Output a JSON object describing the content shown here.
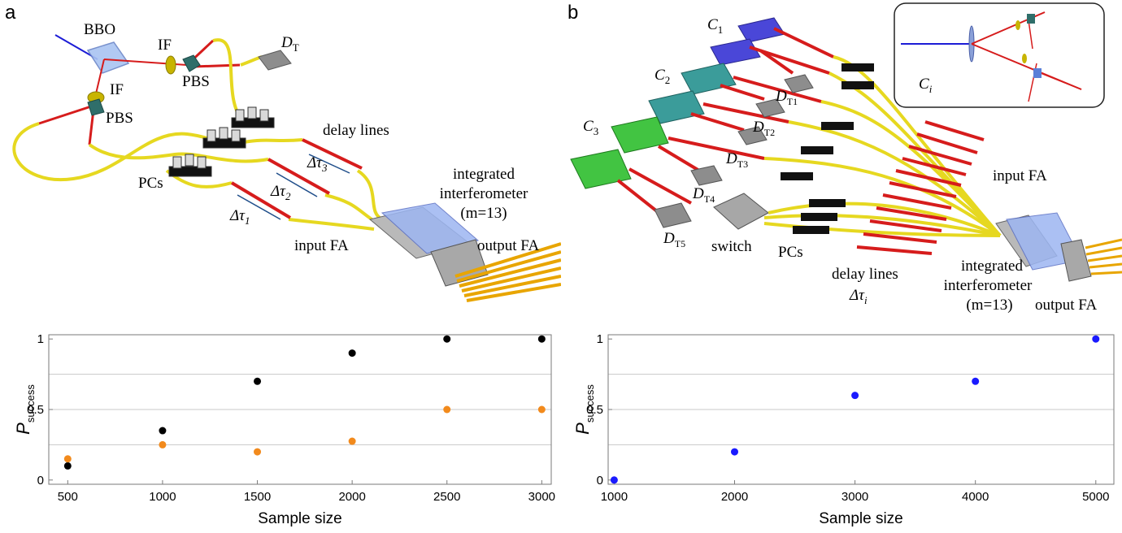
{
  "panels": {
    "a": {
      "letter": "a",
      "labels": {
        "bbo": "BBO",
        "if_top": "IF",
        "pbs_top": "PBS",
        "if_left": "IF",
        "pbs_left": "PBS",
        "dt_main": "D",
        "dt_sub": "T",
        "delay_lines": "delay lines",
        "pcs": "PCs",
        "integrated": "integrated",
        "interferometer": "interferometer",
        "m_eq": "(m=13)",
        "input_fa": "input FA",
        "output_fa": "output FA",
        "tau1": "Δτ",
        "tau1_sub": "1",
        "tau2": "Δτ",
        "tau2_sub": "2",
        "tau3": "Δτ",
        "tau3_sub": "3"
      }
    },
    "b": {
      "letter": "b",
      "labels": {
        "c1": "C",
        "c1_sub": "1",
        "c2": "C",
        "c2_sub": "2",
        "c3": "C",
        "c3_sub": "3",
        "ci": "C",
        "ci_sub": "i",
        "dt1": "D",
        "dt1_sub": "T1",
        "dt2": "D",
        "dt2_sub": "T2",
        "dt3": "D",
        "dt3_sub": "T3",
        "dt4": "D",
        "dt4_sub": "T4",
        "dt5": "D",
        "dt5_sub": "T5",
        "switch": "switch",
        "pcs": "PCs",
        "delay_lines": "delay lines",
        "tau_i": "Δτ",
        "tau_i_sub": "i",
        "input_fa": "input FA",
        "integrated": "integrated",
        "interferometer": "interferometer",
        "m_eq": "(m=13)",
        "output_fa": "output FA"
      }
    }
  },
  "chart_data": [
    {
      "type": "scatter",
      "xlabel": "Sample size",
      "ylabel": "P",
      "ylabel_sub": "success",
      "xlim": [
        400,
        3050
      ],
      "ylim": [
        -0.03,
        1.03
      ],
      "xticks": [
        500,
        1000,
        1500,
        2000,
        2500,
        3000
      ],
      "yticks": [
        0,
        0.5,
        1
      ],
      "ytick_labels": [
        "0",
        "0.5",
        "1"
      ],
      "gridlines_y": [
        0.25,
        0.5,
        0.75
      ],
      "series": [
        {
          "color": "#000000",
          "x": [
            500,
            1000,
            1500,
            2000,
            2500,
            3000
          ],
          "y": [
            0.1,
            0.35,
            0.7,
            0.9,
            1.0,
            1.0
          ]
        },
        {
          "color": "#f28a1c",
          "x": [
            500,
            1000,
            1500,
            2000,
            2500,
            3000
          ],
          "y": [
            0.15,
            0.25,
            0.2,
            0.275,
            0.5,
            0.5
          ]
        }
      ]
    },
    {
      "type": "scatter",
      "xlabel": "Sample size",
      "ylabel": "P",
      "ylabel_sub": "success",
      "xlim": [
        950,
        5150
      ],
      "ylim": [
        -0.03,
        1.03
      ],
      "xticks": [
        1000,
        2000,
        3000,
        4000,
        5000
      ],
      "yticks": [
        0,
        0.5,
        1
      ],
      "ytick_labels": [
        "0",
        "0.5",
        "1"
      ],
      "gridlines_y": [
        0.25,
        0.5,
        0.75
      ],
      "series": [
        {
          "color": "#1a1aff",
          "x": [
            1000,
            2000,
            3000,
            4000,
            5000
          ],
          "y": [
            0.0,
            0.2,
            0.6,
            0.7,
            1.0
          ]
        }
      ]
    }
  ]
}
